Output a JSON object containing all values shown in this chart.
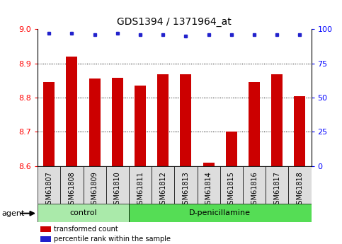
{
  "title": "GDS1394 / 1371964_at",
  "samples": [
    "GSM61807",
    "GSM61808",
    "GSM61809",
    "GSM61810",
    "GSM61811",
    "GSM61812",
    "GSM61813",
    "GSM61814",
    "GSM61815",
    "GSM61816",
    "GSM61817",
    "GSM61818"
  ],
  "red_values": [
    8.845,
    8.92,
    8.855,
    8.858,
    8.836,
    8.868,
    8.869,
    8.61,
    8.7,
    8.845,
    8.868,
    8.805
  ],
  "blue_values": [
    97,
    97,
    96,
    97,
    96,
    96,
    95,
    96,
    96,
    96,
    96,
    96
  ],
  "ylim_left": [
    8.6,
    9.0
  ],
  "ylim_right": [
    0,
    100
  ],
  "yticks_left": [
    8.6,
    8.7,
    8.8,
    8.9,
    9.0
  ],
  "yticks_right": [
    0,
    25,
    50,
    75,
    100
  ],
  "n_control": 4,
  "n_dpen": 8,
  "bar_color": "#cc0000",
  "dot_color": "#2222cc",
  "control_label": "control",
  "dpen_label": "D-penicillamine",
  "agent_label": "agent",
  "legend_red": "transformed count",
  "legend_blue": "percentile rank within the sample",
  "control_bg": "#aaeaaa",
  "dpen_bg": "#55dd55",
  "bar_width": 0.5,
  "title_fontsize": 10,
  "tick_fontsize": 7,
  "label_fontsize": 8,
  "xtick_bg": "#dddddd"
}
